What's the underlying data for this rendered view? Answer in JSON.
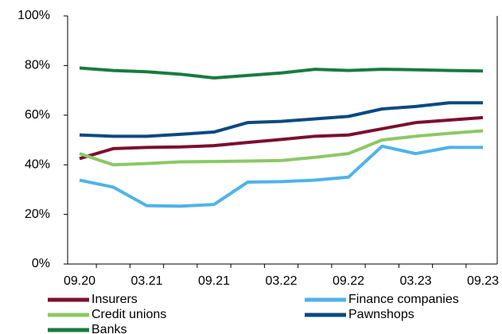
{
  "chart_data": {
    "type": "line",
    "categories": [
      "09.20",
      null,
      "03.21",
      null,
      "09.21",
      null,
      "03.22",
      null,
      "09.22",
      null,
      "03.23",
      null,
      "09.23"
    ],
    "ylim": [
      0,
      100
    ],
    "yticks": [
      {
        "value": 0,
        "label": "0%"
      },
      {
        "value": 20,
        "label": "20%"
      },
      {
        "value": 40,
        "label": "40%"
      },
      {
        "value": 60,
        "label": "60%"
      },
      {
        "value": 80,
        "label": "80%"
      },
      {
        "value": 100,
        "label": "100%"
      }
    ],
    "grid": false,
    "legend": "bottom",
    "series": [
      {
        "name": "Insurers",
        "color": "#7b1030",
        "values": [
          42.5,
          46.5,
          47,
          47.2,
          47.7,
          49,
          50.2,
          51.5,
          52,
          54.5,
          57,
          58,
          59
        ]
      },
      {
        "name": "Finance companies",
        "color": "#4fb3e8",
        "values": [
          33.8,
          31,
          23.5,
          23.3,
          24,
          33,
          33.2,
          33.8,
          35,
          47.5,
          44.5,
          47,
          47
        ]
      },
      {
        "name": "Credit unions",
        "color": "#8cc865",
        "values": [
          44.5,
          40,
          40.5,
          41.2,
          41.3,
          41.5,
          41.7,
          43,
          44.5,
          50,
          51.5,
          52.7,
          53.7
        ]
      },
      {
        "name": "Pawnshops",
        "color": "#0b4a80",
        "values": [
          52,
          51.5,
          51.5,
          52.3,
          53.2,
          57,
          57.5,
          58.5,
          59.5,
          62.5,
          63.5,
          65,
          65
        ]
      },
      {
        "name": "Banks",
        "color": "#1a7a40",
        "values": [
          79,
          78,
          77.5,
          76.5,
          75,
          76,
          77,
          78.5,
          78,
          78.5,
          78.3,
          78,
          77.8
        ]
      }
    ]
  }
}
